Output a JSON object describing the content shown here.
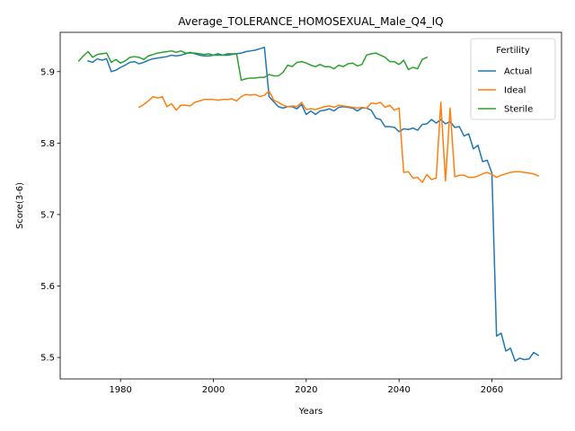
{
  "chart_data": {
    "type": "line",
    "title": "Average_TOLERANCE_HOMOSEXUAL_Male_Q4_IQ",
    "xlabel": "Years",
    "ylabel": "Score(3-6)",
    "xlim": [
      1967,
      2075
    ],
    "ylim": [
      5.47,
      5.955
    ],
    "xticks": [
      1980,
      2000,
      2020,
      2040,
      2060
    ],
    "yticks": [
      5.5,
      5.6,
      5.7,
      5.8,
      5.9
    ],
    "ytick_labels": [
      "5.5",
      "5.6",
      "5.7",
      "5.8",
      "5.9"
    ],
    "grid": false,
    "legend": {
      "title": "Fertility",
      "position": "top-right"
    },
    "series": [
      {
        "name": "Actual",
        "color": "#1f77b4",
        "points": [
          [
            1973,
            5.915
          ],
          [
            1974,
            5.913
          ],
          [
            1975,
            5.918
          ],
          [
            1976,
            5.916
          ],
          [
            1977,
            5.918
          ],
          [
            1978,
            5.9
          ],
          [
            1979,
            5.902
          ],
          [
            1980,
            5.906
          ],
          [
            1981,
            5.909
          ],
          [
            1982,
            5.913
          ],
          [
            1983,
            5.914
          ],
          [
            1984,
            5.911
          ],
          [
            1985,
            5.913
          ],
          [
            1986,
            5.916
          ],
          [
            1987,
            5.918
          ],
          [
            1988,
            5.919
          ],
          [
            1989,
            5.92
          ],
          [
            1990,
            5.921
          ],
          [
            1991,
            5.923
          ],
          [
            1992,
            5.922
          ],
          [
            1993,
            5.923
          ],
          [
            1994,
            5.925
          ],
          [
            1995,
            5.927
          ],
          [
            1996,
            5.925
          ],
          [
            1997,
            5.923
          ],
          [
            1998,
            5.922
          ],
          [
            1999,
            5.922
          ],
          [
            2000,
            5.923
          ],
          [
            2001,
            5.925
          ],
          [
            2002,
            5.923
          ],
          [
            2003,
            5.923
          ],
          [
            2004,
            5.924
          ],
          [
            2005,
            5.925
          ],
          [
            2006,
            5.926
          ],
          [
            2007,
            5.928
          ],
          [
            2008,
            5.929
          ],
          [
            2009,
            5.93
          ],
          [
            2010,
            5.932
          ],
          [
            2011,
            5.934
          ],
          [
            2012,
            5.865
          ],
          [
            2013,
            5.858
          ],
          [
            2014,
            5.851
          ],
          [
            2015,
            5.849
          ],
          [
            2016,
            5.851
          ],
          [
            2017,
            5.851
          ],
          [
            2018,
            5.848
          ],
          [
            2019,
            5.854
          ],
          [
            2020,
            5.84
          ],
          [
            2021,
            5.845
          ],
          [
            2022,
            5.84
          ],
          [
            2023,
            5.845
          ],
          [
            2024,
            5.846
          ],
          [
            2025,
            5.848
          ],
          [
            2026,
            5.845
          ],
          [
            2027,
            5.85
          ],
          [
            2028,
            5.851
          ],
          [
            2029,
            5.85
          ],
          [
            2030,
            5.849
          ],
          [
            2031,
            5.845
          ],
          [
            2032,
            5.849
          ],
          [
            2033,
            5.849
          ],
          [
            2034,
            5.846
          ],
          [
            2035,
            5.835
          ],
          [
            2036,
            5.833
          ],
          [
            2037,
            5.823
          ],
          [
            2038,
            5.823
          ],
          [
            2039,
            5.822
          ],
          [
            2040,
            5.816
          ],
          [
            2041,
            5.82
          ],
          [
            2042,
            5.819
          ],
          [
            2043,
            5.821
          ],
          [
            2044,
            5.818
          ],
          [
            2045,
            5.826
          ],
          [
            2046,
            5.827
          ],
          [
            2047,
            5.833
          ],
          [
            2048,
            5.828
          ],
          [
            2049,
            5.833
          ],
          [
            2050,
            5.827
          ],
          [
            2051,
            5.83
          ],
          [
            2052,
            5.822
          ],
          [
            2053,
            5.823
          ],
          [
            2054,
            5.81
          ],
          [
            2055,
            5.813
          ],
          [
            2056,
            5.792
          ],
          [
            2057,
            5.797
          ],
          [
            2058,
            5.774
          ],
          [
            2059,
            5.776
          ],
          [
            2060,
            5.758
          ],
          [
            2061,
            5.53
          ],
          [
            2062,
            5.534
          ],
          [
            2063,
            5.509
          ],
          [
            2064,
            5.513
          ],
          [
            2065,
            5.495
          ],
          [
            2066,
            5.499
          ],
          [
            2067,
            5.497
          ],
          [
            2068,
            5.498
          ],
          [
            2069,
            5.507
          ],
          [
            2070,
            5.503
          ]
        ]
      },
      {
        "name": "Ideal",
        "color": "#ff7f0e",
        "points": [
          [
            1984,
            5.85
          ],
          [
            1985,
            5.854
          ],
          [
            1986,
            5.859
          ],
          [
            1987,
            5.865
          ],
          [
            1988,
            5.863
          ],
          [
            1989,
            5.865
          ],
          [
            1990,
            5.851
          ],
          [
            1991,
            5.855
          ],
          [
            1992,
            5.846
          ],
          [
            1993,
            5.853
          ],
          [
            1994,
            5.853
          ],
          [
            1995,
            5.852
          ],
          [
            1996,
            5.857
          ],
          [
            1997,
            5.859
          ],
          [
            1998,
            5.861
          ],
          [
            1999,
            5.861
          ],
          [
            2000,
            5.861
          ],
          [
            2001,
            5.86
          ],
          [
            2002,
            5.861
          ],
          [
            2003,
            5.861
          ],
          [
            2004,
            5.862
          ],
          [
            2005,
            5.859
          ],
          [
            2006,
            5.865
          ],
          [
            2007,
            5.868
          ],
          [
            2008,
            5.867
          ],
          [
            2009,
            5.868
          ],
          [
            2010,
            5.865
          ],
          [
            2011,
            5.867
          ],
          [
            2012,
            5.873
          ],
          [
            2013,
            5.86
          ],
          [
            2014,
            5.857
          ],
          [
            2015,
            5.853
          ],
          [
            2016,
            5.851
          ],
          [
            2017,
            5.852
          ],
          [
            2018,
            5.851
          ],
          [
            2019,
            5.857
          ],
          [
            2020,
            5.847
          ],
          [
            2021,
            5.848
          ],
          [
            2022,
            5.847
          ],
          [
            2023,
            5.849
          ],
          [
            2024,
            5.851
          ],
          [
            2025,
            5.852
          ],
          [
            2026,
            5.85
          ],
          [
            2027,
            5.853
          ],
          [
            2028,
            5.852
          ],
          [
            2029,
            5.851
          ],
          [
            2030,
            5.85
          ],
          [
            2031,
            5.849
          ],
          [
            2032,
            5.85
          ],
          [
            2033,
            5.849
          ],
          [
            2034,
            5.856
          ],
          [
            2035,
            5.855
          ],
          [
            2036,
            5.857
          ],
          [
            2037,
            5.85
          ],
          [
            2038,
            5.853
          ],
          [
            2039,
            5.846
          ],
          [
            2040,
            5.849
          ],
          [
            2041,
            5.759
          ],
          [
            2042,
            5.76
          ],
          [
            2043,
            5.751
          ],
          [
            2044,
            5.752
          ],
          [
            2045,
            5.745
          ],
          [
            2046,
            5.756
          ],
          [
            2047,
            5.749
          ],
          [
            2048,
            5.751
          ],
          [
            2049,
            5.857
          ],
          [
            2050,
            5.747
          ],
          [
            2051,
            5.849
          ],
          [
            2052,
            5.753
          ],
          [
            2053,
            5.755
          ],
          [
            2054,
            5.755
          ],
          [
            2055,
            5.752
          ],
          [
            2056,
            5.752
          ],
          [
            2057,
            5.754
          ],
          [
            2058,
            5.757
          ],
          [
            2059,
            5.759
          ],
          [
            2060,
            5.756
          ],
          [
            2061,
            5.752
          ],
          [
            2062,
            5.755
          ],
          [
            2063,
            5.757
          ],
          [
            2064,
            5.759
          ],
          [
            2065,
            5.76
          ],
          [
            2066,
            5.76
          ],
          [
            2067,
            5.759
          ],
          [
            2068,
            5.758
          ],
          [
            2069,
            5.757
          ],
          [
            2070,
            5.754
          ]
        ]
      },
      {
        "name": "Sterile",
        "color": "#2ca02c",
        "points": [
          [
            1971,
            5.915
          ],
          [
            1972,
            5.922
          ],
          [
            1973,
            5.928
          ],
          [
            1974,
            5.92
          ],
          [
            1975,
            5.924
          ],
          [
            1976,
            5.925
          ],
          [
            1977,
            5.926
          ],
          [
            1978,
            5.913
          ],
          [
            1979,
            5.917
          ],
          [
            1980,
            5.912
          ],
          [
            1981,
            5.915
          ],
          [
            1982,
            5.92
          ],
          [
            1983,
            5.921
          ],
          [
            1984,
            5.92
          ],
          [
            1985,
            5.917
          ],
          [
            1986,
            5.922
          ],
          [
            1987,
            5.924
          ],
          [
            1988,
            5.926
          ],
          [
            1989,
            5.927
          ],
          [
            1990,
            5.928
          ],
          [
            1991,
            5.929
          ],
          [
            1992,
            5.927
          ],
          [
            1993,
            5.929
          ],
          [
            1994,
            5.926
          ],
          [
            1995,
            5.926
          ],
          [
            1996,
            5.926
          ],
          [
            1997,
            5.925
          ],
          [
            1998,
            5.924
          ],
          [
            1999,
            5.925
          ],
          [
            2000,
            5.923
          ],
          [
            2001,
            5.923
          ],
          [
            2002,
            5.923
          ],
          [
            2003,
            5.925
          ],
          [
            2004,
            5.925
          ],
          [
            2005,
            5.925
          ],
          [
            2006,
            5.888
          ],
          [
            2007,
            5.89
          ],
          [
            2008,
            5.891
          ],
          [
            2009,
            5.891
          ],
          [
            2010,
            5.892
          ],
          [
            2011,
            5.892
          ],
          [
            2012,
            5.896
          ],
          [
            2013,
            5.894
          ],
          [
            2014,
            5.894
          ],
          [
            2015,
            5.899
          ],
          [
            2016,
            5.909
          ],
          [
            2017,
            5.907
          ],
          [
            2018,
            5.913
          ],
          [
            2019,
            5.914
          ],
          [
            2020,
            5.912
          ],
          [
            2021,
            5.909
          ],
          [
            2022,
            5.907
          ],
          [
            2023,
            5.91
          ],
          [
            2024,
            5.907
          ],
          [
            2025,
            5.907
          ],
          [
            2026,
            5.904
          ],
          [
            2027,
            5.909
          ],
          [
            2028,
            5.907
          ],
          [
            2029,
            5.911
          ],
          [
            2030,
            5.912
          ],
          [
            2031,
            5.908
          ],
          [
            2032,
            5.91
          ],
          [
            2033,
            5.923
          ],
          [
            2034,
            5.925
          ],
          [
            2035,
            5.926
          ],
          [
            2036,
            5.923
          ],
          [
            2037,
            5.92
          ],
          [
            2038,
            5.914
          ],
          [
            2039,
            5.914
          ],
          [
            2040,
            5.91
          ],
          [
            2041,
            5.916
          ],
          [
            2042,
            5.903
          ],
          [
            2043,
            5.906
          ],
          [
            2044,
            5.904
          ],
          [
            2045,
            5.917
          ],
          [
            2046,
            5.92
          ]
        ]
      }
    ]
  }
}
